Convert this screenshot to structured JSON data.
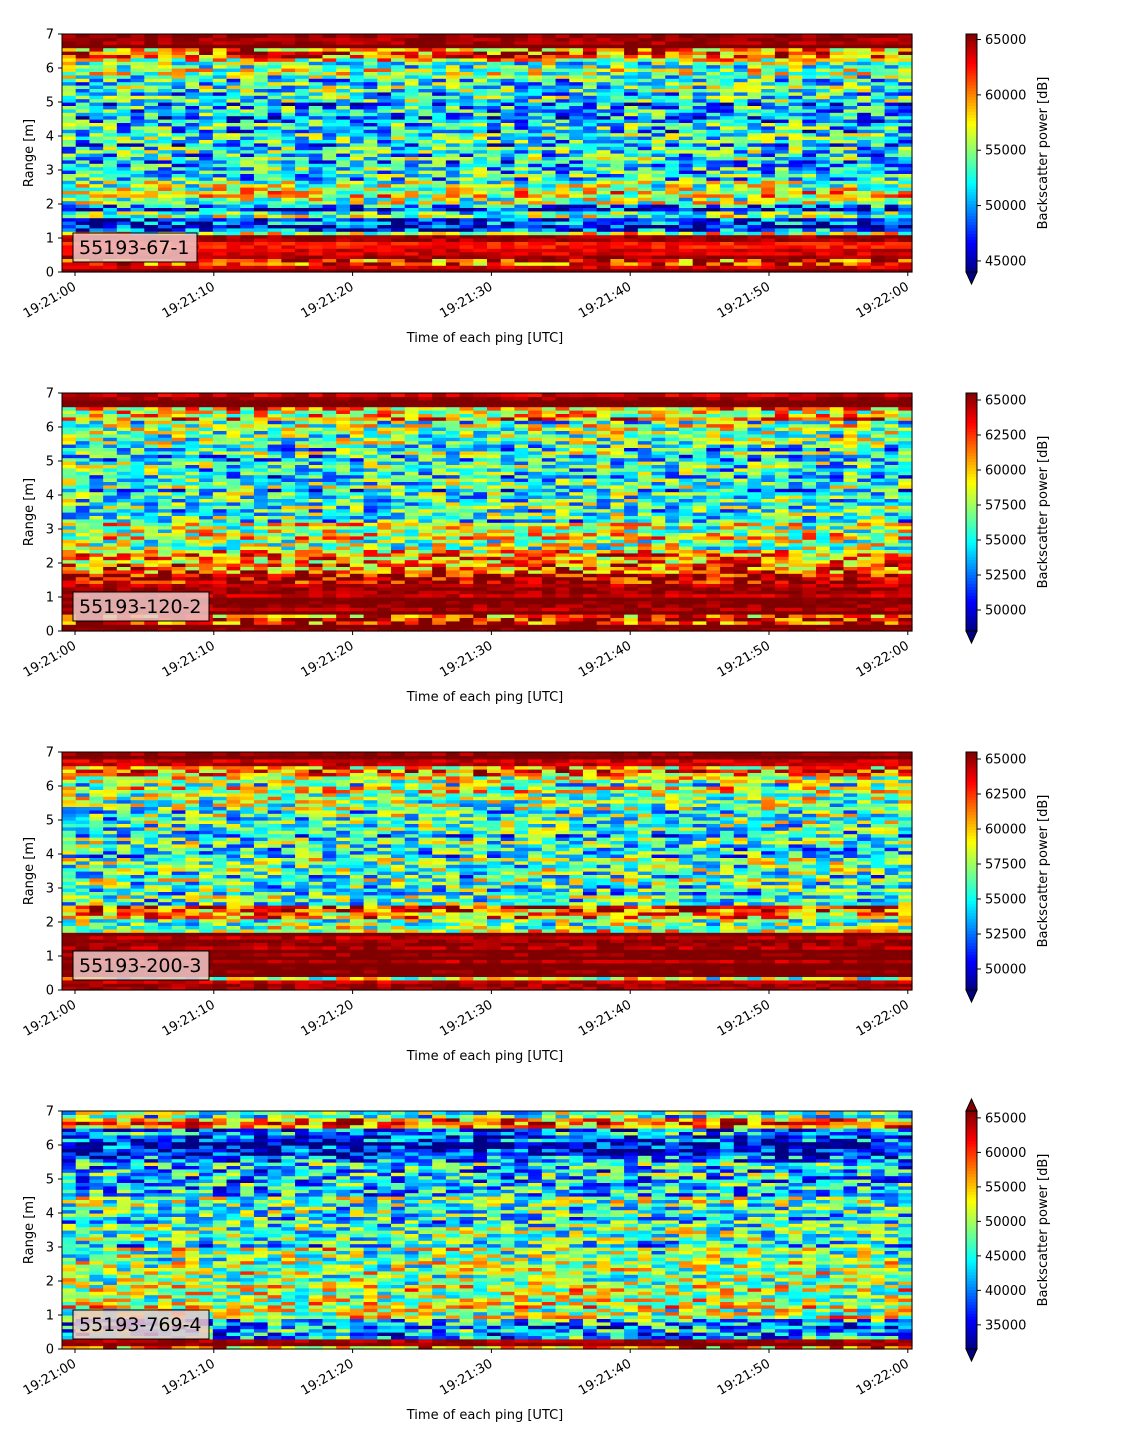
{
  "chart_data": [
    {
      "type": "heatmap",
      "label": "55193-67-1",
      "xlabel": "Time of each ping [UTC]",
      "ylabel": "Range [m]",
      "colorbar_label": "Backscatter power [dB]",
      "colormap": "jet",
      "ylim": [
        0,
        7
      ],
      "yticks": [
        0,
        1,
        2,
        3,
        4,
        5,
        6,
        7
      ],
      "xticks": [
        "19:21:00",
        "19:21:10",
        "19:21:20",
        "19:21:30",
        "19:21:40",
        "19:21:50",
        "19:22:00"
      ],
      "clim": [
        44000,
        65500
      ],
      "cbar_ticks": [
        45000,
        50000,
        55000,
        60000,
        65000
      ],
      "extend": "min",
      "bands": [
        {
          "range": [
            0,
            0.25
          ],
          "value": 65500
        },
        {
          "range": [
            0.25,
            0.45
          ],
          "value": 61000
        },
        {
          "range": [
            0.45,
            0.75
          ],
          "value": 65500
        },
        {
          "range": [
            0.75,
            1.1
          ],
          "value": 64000
        },
        {
          "range": [
            1.1,
            1.2
          ],
          "value": 56000
        },
        {
          "range": [
            1.2,
            1.35
          ],
          "value": 49000
        },
        {
          "range": [
            1.35,
            1.6
          ],
          "value": 47500
        },
        {
          "range": [
            1.6,
            1.85
          ],
          "value": 54000
        },
        {
          "range": [
            1.85,
            2.05
          ],
          "value": 48500
        },
        {
          "range": [
            2.05,
            2.6
          ],
          "value": 56500
        },
        {
          "range": [
            2.6,
            3.0
          ],
          "value": 53500
        },
        {
          "range": [
            3.0,
            4.5
          ],
          "value": 51500
        },
        {
          "range": [
            4.5,
            5.0
          ],
          "value": 50000
        },
        {
          "range": [
            5.0,
            5.8
          ],
          "value": 52500
        },
        {
          "range": [
            5.8,
            6.3
          ],
          "value": 55500
        },
        {
          "range": [
            6.3,
            6.6
          ],
          "value": 60500
        },
        {
          "range": [
            6.6,
            7.0
          ],
          "value": 65500
        }
      ]
    },
    {
      "type": "heatmap",
      "label": "55193-120-2",
      "xlabel": "Time of each ping [UTC]",
      "ylabel": "Range [m]",
      "colorbar_label": "Backscatter power [dB]",
      "colormap": "jet",
      "ylim": [
        0,
        7
      ],
      "yticks": [
        0,
        1,
        2,
        3,
        4,
        5,
        6,
        7
      ],
      "xticks": [
        "19:21:00",
        "19:21:10",
        "19:21:20",
        "19:21:30",
        "19:21:40",
        "19:21:50",
        "19:22:00"
      ],
      "clim": [
        48500,
        65500
      ],
      "cbar_ticks": [
        50000,
        52500,
        55000,
        57500,
        60000,
        62500,
        65000
      ],
      "extend": "min",
      "bands": [
        {
          "range": [
            0,
            0.2
          ],
          "value": 65500
        },
        {
          "range": [
            0.2,
            0.5
          ],
          "value": 63000
        },
        {
          "range": [
            0.5,
            1.4
          ],
          "value": 65500
        },
        {
          "range": [
            1.4,
            1.8
          ],
          "value": 64000
        },
        {
          "range": [
            1.8,
            2.3
          ],
          "value": 61000
        },
        {
          "range": [
            2.3,
            2.7
          ],
          "value": 58500
        },
        {
          "range": [
            2.7,
            3.2
          ],
          "value": 58000
        },
        {
          "range": [
            3.2,
            4.0
          ],
          "value": 56000
        },
        {
          "range": [
            4.0,
            5.5
          ],
          "value": 55000
        },
        {
          "range": [
            5.5,
            6.2
          ],
          "value": 57000
        },
        {
          "range": [
            6.2,
            6.6
          ],
          "value": 60500
        },
        {
          "range": [
            6.6,
            7.0
          ],
          "value": 65500
        }
      ]
    },
    {
      "type": "heatmap",
      "label": "55193-200-3",
      "xlabel": "Time of each ping [UTC]",
      "ylabel": "Range [m]",
      "colorbar_label": "Backscatter power [dB]",
      "colormap": "jet",
      "ylim": [
        0,
        7
      ],
      "yticks": [
        0,
        1,
        2,
        3,
        4,
        5,
        6,
        7
      ],
      "xticks": [
        "19:21:00",
        "19:21:10",
        "19:21:20",
        "19:21:30",
        "19:21:40",
        "19:21:50",
        "19:22:00"
      ],
      "clim": [
        48500,
        65500
      ],
      "cbar_ticks": [
        50000,
        52500,
        55000,
        57500,
        60000,
        62500,
        65000
      ],
      "extend": "min",
      "bands": [
        {
          "range": [
            0,
            0.3
          ],
          "value": 65500
        },
        {
          "range": [
            0.3,
            0.45
          ],
          "value": 59000
        },
        {
          "range": [
            0.45,
            1.7
          ],
          "value": 65500
        },
        {
          "range": [
            1.7,
            2.1
          ],
          "value": 57000
        },
        {
          "range": [
            2.1,
            2.5
          ],
          "value": 61500
        },
        {
          "range": [
            2.5,
            4.2
          ],
          "value": 56000
        },
        {
          "range": [
            4.2,
            5.5
          ],
          "value": 55500
        },
        {
          "range": [
            5.5,
            6.3
          ],
          "value": 57500
        },
        {
          "range": [
            6.3,
            6.6
          ],
          "value": 61000
        },
        {
          "range": [
            6.6,
            7.0
          ],
          "value": 65500
        }
      ]
    },
    {
      "type": "heatmap",
      "label": "55193-769-4",
      "xlabel": "Time of each ping [UTC]",
      "ylabel": "Range [m]",
      "colorbar_label": "Backscatter power [dB]",
      "colormap": "jet",
      "ylim": [
        0,
        7
      ],
      "yticks": [
        0,
        1,
        2,
        3,
        4,
        5,
        6,
        7
      ],
      "xticks": [
        "19:21:00",
        "19:21:10",
        "19:21:20",
        "19:21:30",
        "19:21:40",
        "19:21:50",
        "19:22:00"
      ],
      "clim": [
        31500,
        66000
      ],
      "cbar_ticks": [
        35000,
        40000,
        45000,
        50000,
        55000,
        60000,
        65000
      ],
      "extend": "both",
      "bands": [
        {
          "range": [
            0,
            0.15
          ],
          "value": 60000
        },
        {
          "range": [
            0.15,
            0.3
          ],
          "value": 66000
        },
        {
          "range": [
            0.3,
            0.9
          ],
          "value": 42000
        },
        {
          "range": [
            0.9,
            1.7
          ],
          "value": 51000
        },
        {
          "range": [
            1.7,
            3.0
          ],
          "value": 49500
        },
        {
          "range": [
            3.0,
            4.5
          ],
          "value": 46000
        },
        {
          "range": [
            4.5,
            5.5
          ],
          "value": 43000
        },
        {
          "range": [
            5.5,
            6.3
          ],
          "value": 37500
        },
        {
          "range": [
            6.3,
            6.55
          ],
          "value": 41000
        },
        {
          "range": [
            6.55,
            6.8
          ],
          "value": 59000
        },
        {
          "range": [
            6.8,
            7.0
          ],
          "value": 48000
        }
      ]
    }
  ]
}
